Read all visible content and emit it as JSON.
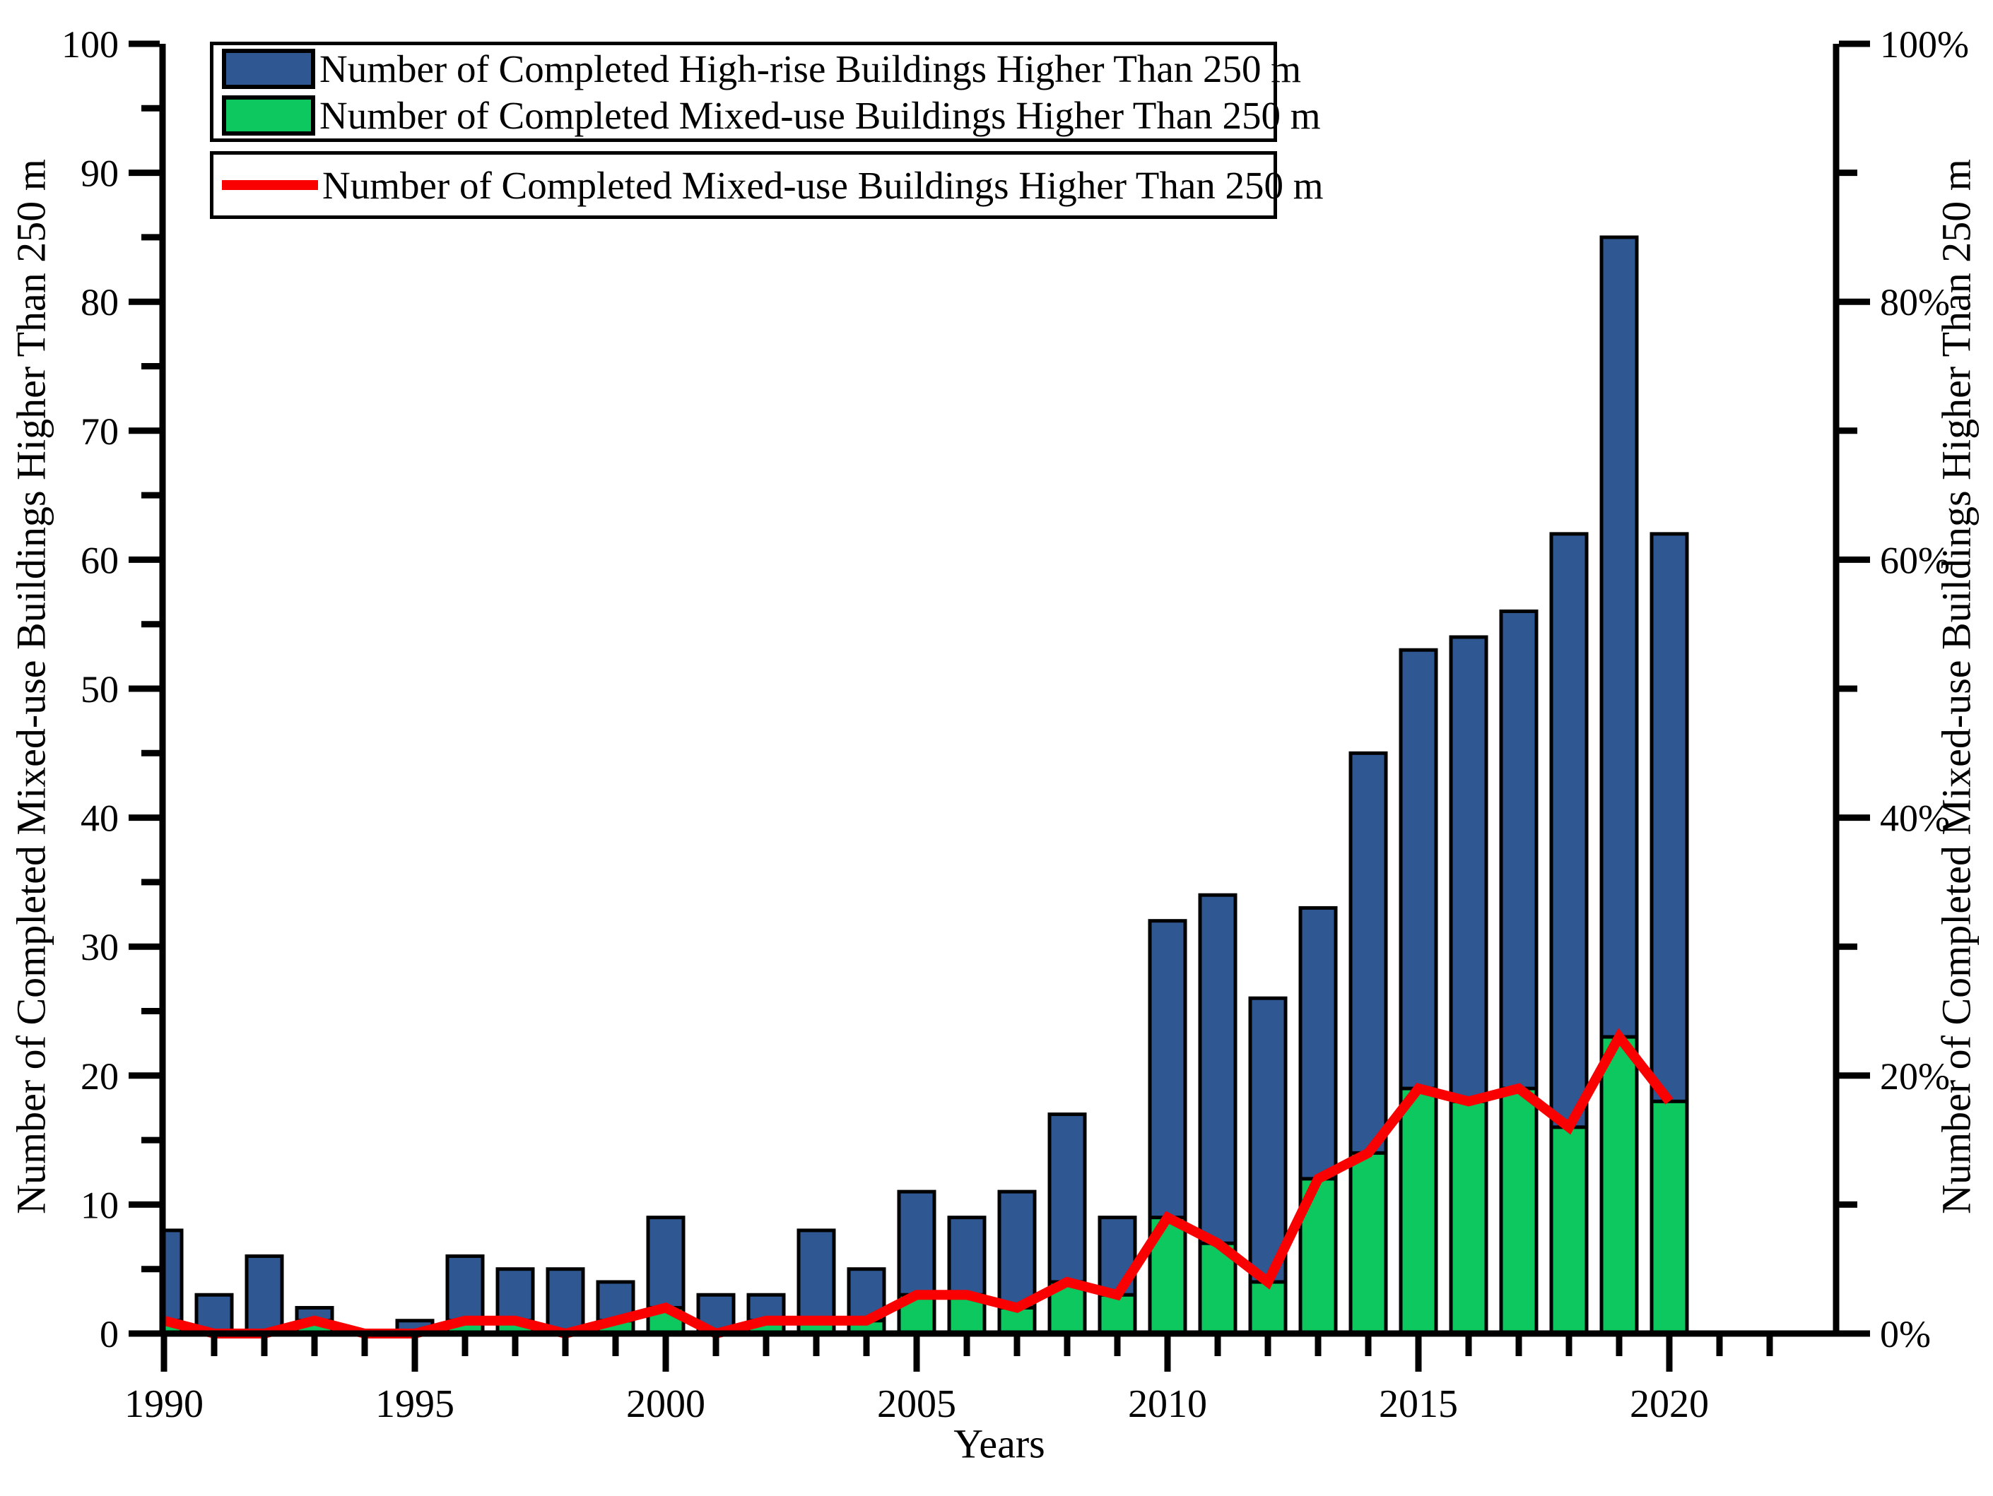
{
  "chart_data": {
    "type": "bar",
    "title": "",
    "xlabel": "Years",
    "ylabel_left": "Number of Completed Mixed-use Buildings Higher Than 250 m",
    "ylabel_right": "Number of Completed Mixed-use Buildings Higher Than 250 m",
    "x": [
      1990,
      1991,
      1992,
      1993,
      1994,
      1995,
      1996,
      1997,
      1998,
      1999,
      2000,
      2001,
      2002,
      2003,
      2004,
      2005,
      2006,
      2007,
      2008,
      2009,
      2010,
      2011,
      2012,
      2013,
      2014,
      2015,
      2016,
      2017,
      2018,
      2019,
      2020
    ],
    "series": [
      {
        "name": "Number of Completed High-rise Buildings Higher Than 250 m",
        "type": "bar",
        "color": "#2f5792",
        "values": [
          8,
          3,
          6,
          2,
          0,
          1,
          6,
          5,
          5,
          4,
          9,
          3,
          3,
          8,
          5,
          11,
          9,
          11,
          17,
          9,
          32,
          34,
          26,
          33,
          45,
          53,
          54,
          56,
          62,
          85,
          62
        ]
      },
      {
        "name": "Number of Completed Mixed-use Buildings Higher Than 250 m",
        "type": "bar",
        "color": "#0dc75f",
        "values": [
          1,
          0,
          0,
          1,
          0,
          0,
          1,
          1,
          0,
          1,
          2,
          0,
          1,
          1,
          1,
          3,
          3,
          2,
          4,
          3,
          9,
          7,
          4,
          12,
          14,
          19,
          18,
          19,
          16,
          23,
          18
        ]
      },
      {
        "name": "Number of Completed Mixed-use Buildings Higher Than 250 m",
        "type": "line",
        "color": "#fa0000",
        "axis": "right",
        "values": [
          1,
          0,
          0,
          1,
          0,
          0,
          1,
          1,
          0,
          1,
          2,
          0,
          1,
          1,
          1,
          3,
          3,
          2,
          4,
          3,
          9,
          7,
          4,
          12,
          14,
          19,
          18,
          19,
          16,
          23,
          18
        ]
      }
    ],
    "ylim_left": [
      0,
      100
    ],
    "ylim_right_percent": [
      0,
      100
    ],
    "y_ticks_left": [
      "0",
      "10",
      "20",
      "30",
      "40",
      "50",
      "60",
      "70",
      "80",
      "90",
      "100"
    ],
    "y_minor_step_left": 5,
    "y_ticks_right": [
      "0%",
      "20%",
      "40%",
      "60%",
      "80%",
      "100%"
    ],
    "y_minor_step_right": 10,
    "x_major_ticks": [
      1990,
      1995,
      2000,
      2005,
      2010,
      2015,
      2020
    ],
    "x_minor_step": 1,
    "x_tick_extent": [
      1990,
      2022
    ],
    "grid": false,
    "legend_position": "top-left"
  },
  "legend": {
    "bars_box": {
      "entries": [
        {
          "swatch_color": "#2f5792",
          "label": "Number of Completed High-rise Buildings Higher Than 250 m"
        },
        {
          "swatch_color": "#0dc75f",
          "label": "Number of Completed Mixed-use Buildings Higher Than 250 m"
        }
      ]
    },
    "line_box": {
      "entries": [
        {
          "swatch_color": "#fa0000",
          "label": "Number of Completed Mixed-use Buildings Higher Than 250 m"
        }
      ]
    }
  },
  "axes_text": {
    "xlabel": "Years",
    "ylabel_left": "Number of Completed Mixed-use Buildings Higher Than 250 m",
    "ylabel_right": "Number of Completed Mixed-use Buildings Higher Than 250 m"
  },
  "colors": {
    "bar_highrise": "#2f5792",
    "bar_mixeduse": "#0dc75f",
    "line_mixeduse": "#fa0000",
    "axis": "#000000",
    "background": "#ffffff"
  }
}
